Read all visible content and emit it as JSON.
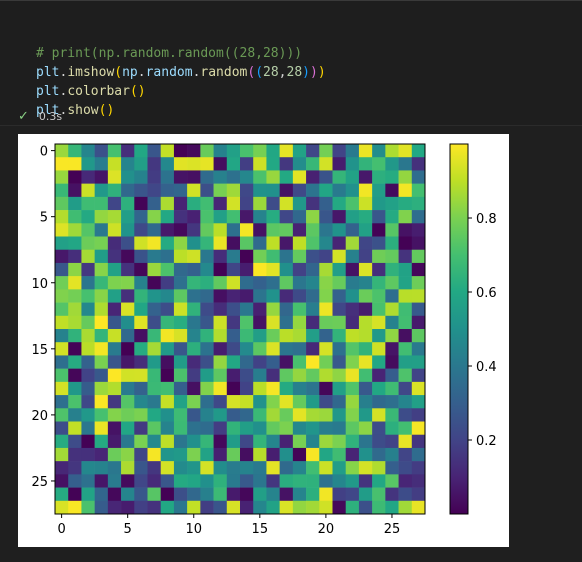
{
  "cell": {
    "code_lines": [
      "# print(np.random.random((28,28)))",
      "plt.imshow(np.random.random((28,28)))",
      "plt.colorbar()",
      "plt.show()"
    ],
    "exec_time": "0.3s",
    "status_icon": "check-icon"
  },
  "colors": {
    "editor_bg": "#1e1e1e",
    "status_ok": "#89d185",
    "colormap": "viridis"
  },
  "chart_data": {
    "type": "heatmap",
    "rows": 28,
    "cols": 28,
    "colormap": "viridis",
    "x_ticks": [
      0,
      5,
      10,
      15,
      20,
      25
    ],
    "y_ticks": [
      0,
      5,
      10,
      15,
      20,
      25
    ],
    "colorbar_ticks": [
      0.2,
      0.4,
      0.6,
      0.8
    ],
    "colorbar_range": [
      0.0,
      1.0
    ],
    "values_seed": 28,
    "grid": false
  }
}
